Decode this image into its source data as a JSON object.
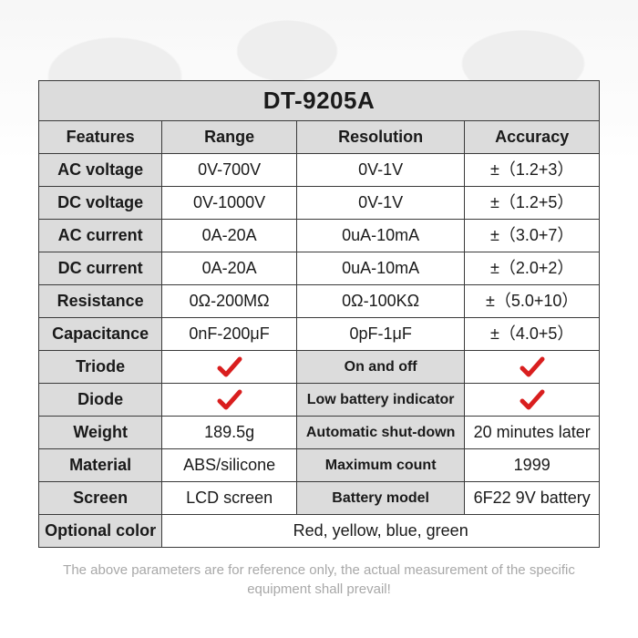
{
  "title": "DT-9205A",
  "colors": {
    "border": "#3a3a3a",
    "header_bg": "#dcdcdc",
    "feature_bg": "#dcdcdc",
    "cell_bg": "#ffffff",
    "text": "#1a1a1a",
    "footnote": "#a8a8a8",
    "check": "#d91e1e"
  },
  "columns": [
    "Features",
    "Range",
    "Resolution",
    "Accuracy"
  ],
  "column_widths": [
    "22%",
    "24%",
    "30%",
    "24%"
  ],
  "rows": [
    {
      "feature": "AC voltage",
      "range": "0V-700V",
      "resolution": "0V-1V",
      "accuracy": "±（1.2+3）"
    },
    {
      "feature": "DC voltage",
      "range": "0V-1000V",
      "resolution": "0V-1V",
      "accuracy": "±（1.2+5）"
    },
    {
      "feature": "AC current",
      "range": "0A-20A",
      "resolution": "0uA-10mA",
      "accuracy": "±（3.0+7）"
    },
    {
      "feature": "DC current",
      "range": "0A-20A",
      "resolution": "0uA-10mA",
      "accuracy": "±（2.0+2）"
    },
    {
      "feature": "Resistance",
      "range": "0Ω-200MΩ",
      "resolution": "0Ω-100KΩ",
      "accuracy": "±（5.0+10）"
    },
    {
      "feature": "Capacitance",
      "range": "0nF-200μF",
      "resolution": "0pF-1μF",
      "accuracy": "±（4.0+5）"
    }
  ],
  "misc_rows": [
    {
      "c0": "Triode",
      "c1_check": true,
      "c2": "On and off",
      "c2_shaded": true,
      "c3_check": true
    },
    {
      "c0": "Diode",
      "c1_check": true,
      "c2": "Low battery indicator",
      "c2_shaded": true,
      "c3_check": true
    },
    {
      "c0": "Weight",
      "c1": "189.5g",
      "c2": "Automatic shut-down",
      "c2_shaded": true,
      "c3": "20 minutes later"
    },
    {
      "c0": "Material",
      "c1": "ABS/silicone",
      "c2": "Maximum count",
      "c2_shaded": true,
      "c3": "1999"
    },
    {
      "c0": "Screen",
      "c1": "LCD screen",
      "c2": "Battery model",
      "c2_shaded": true,
      "c3": "6F22 9V battery"
    }
  ],
  "last_row": {
    "feature": "Optional color",
    "value": "Red, yellow, blue, green"
  },
  "footnote": "The above parameters are for reference only, the actual measurement of the specific equipment shall prevail!",
  "fontsize": {
    "title": 26,
    "body": 18,
    "footnote": 15
  }
}
